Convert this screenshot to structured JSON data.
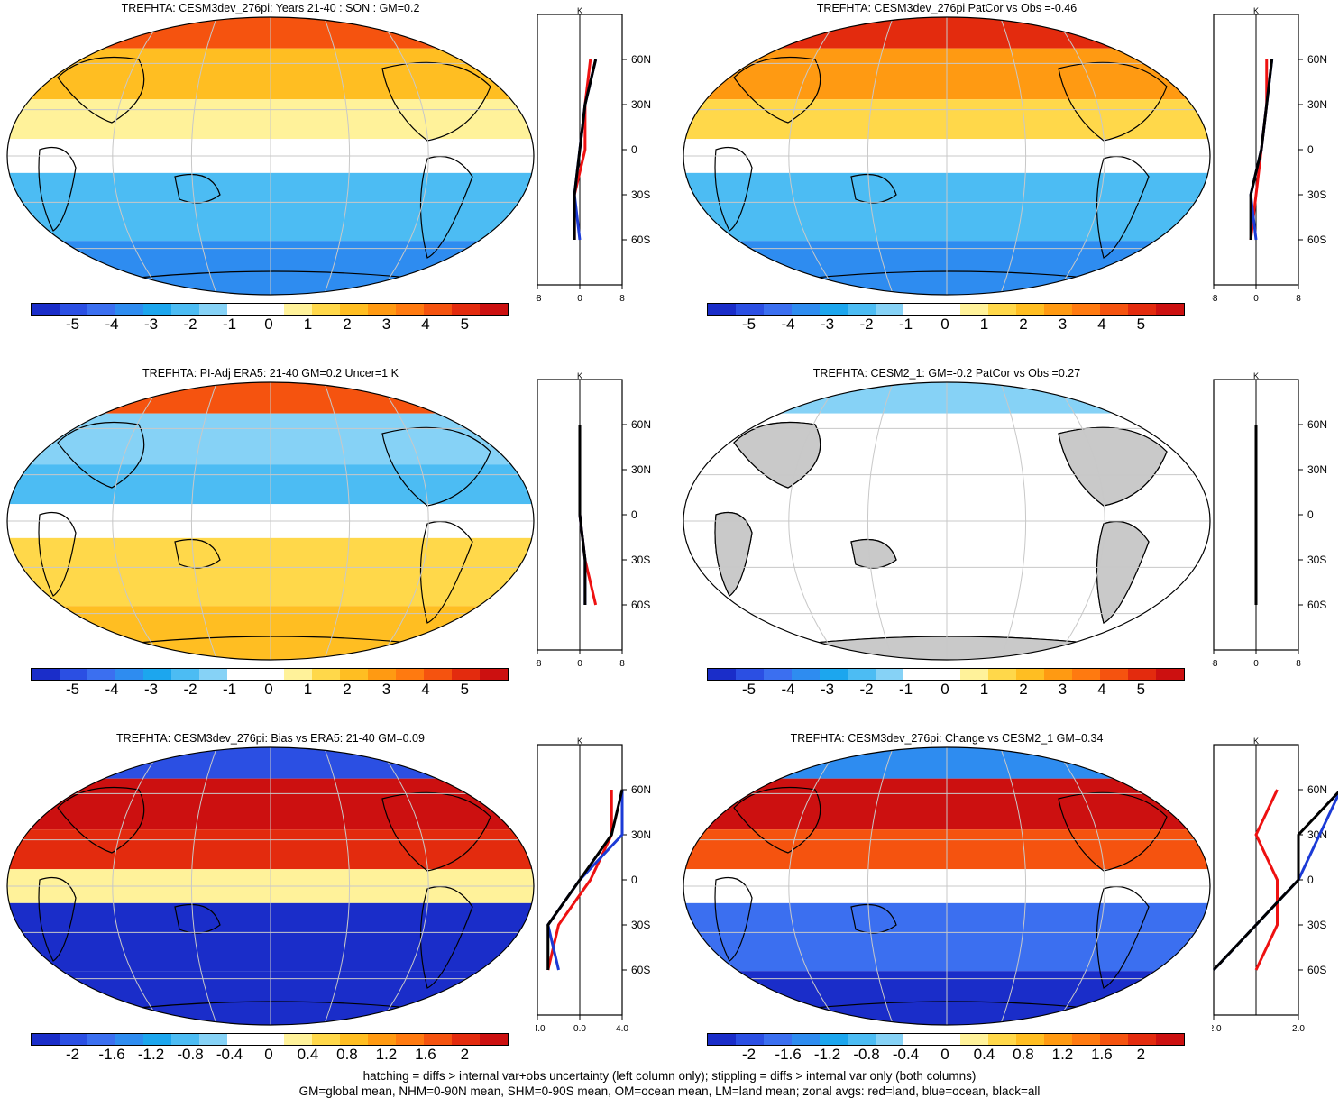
{
  "colors": {
    "palette": [
      "#1a2dc9",
      "#2b4fe3",
      "#3b6ff0",
      "#2e8cf0",
      "#1ca6ee",
      "#4cbcf3",
      "#86d2f6",
      "#ffffff",
      "#ffffff",
      "#fff29a",
      "#ffd84a",
      "#ffbe22",
      "#ff9a12",
      "#ff7a10",
      "#f5530f",
      "#e32b0e",
      "#cc1010"
    ],
    "land_mask": "#c9c9c9",
    "zonal_land": "#ee1111",
    "zonal_ocean": "#1b3ad6",
    "zonal_all": "#000000"
  },
  "panels": [
    {
      "title": "TREFHTA: CESM3dev_276pi: Years 21-40 : SON : GM=0.2",
      "colorbar_ticks": [
        "-5",
        "-4",
        "-3",
        "-2",
        "-1",
        "0",
        "1",
        "2",
        "3",
        "4",
        "5"
      ],
      "zonal_xticks": [
        "-8",
        "0",
        "8"
      ],
      "zonal_unit": "K"
    },
    {
      "title": "TREFHTA: CESM3dev_276pi PatCor vs Obs =-0.46",
      "colorbar_ticks": [
        "-5",
        "-4",
        "-3",
        "-2",
        "-1",
        "0",
        "1",
        "2",
        "3",
        "4",
        "5"
      ],
      "zonal_xticks": [
        "-8",
        "0",
        "8"
      ],
      "zonal_unit": "K"
    },
    {
      "title": "TREFHTA: PI-Adj ERA5: 21-40 GM=0.2 Uncer=1 K",
      "colorbar_ticks": [
        "-5",
        "-4",
        "-3",
        "-2",
        "-1",
        "0",
        "1",
        "2",
        "3",
        "4",
        "5"
      ],
      "zonal_xticks": [
        "-8",
        "0",
        "8"
      ],
      "zonal_unit": "K"
    },
    {
      "title": "TREFHTA: CESM2_1: GM=-0.2 PatCor vs Obs =0.27",
      "colorbar_ticks": [
        "-5",
        "-4",
        "-3",
        "-2",
        "-1",
        "0",
        "1",
        "2",
        "3",
        "4",
        "5"
      ],
      "zonal_xticks": [
        "-8",
        "0",
        "8"
      ],
      "zonal_unit": "K"
    },
    {
      "title": "TREFHTA: CESM3dev_276pi: Bias vs ERA5: 21-40  GM=0.09",
      "colorbar_ticks": [
        "-2",
        "-1.6",
        "-1.2",
        "-0.8",
        "-0.4",
        "0",
        "0.4",
        "0.8",
        "1.2",
        "1.6",
        "2"
      ],
      "zonal_xticks": [
        "-4.0",
        "0.0",
        "4.0"
      ],
      "zonal_unit": "K"
    },
    {
      "title": "TREFHTA: CESM3dev_276pi: Change vs CESM2_1 GM=0.34",
      "colorbar_ticks": [
        "-2",
        "-1.6",
        "-1.2",
        "-0.8",
        "-0.4",
        "0",
        "0.4",
        "0.8",
        "1.2",
        "1.6",
        "2"
      ],
      "zonal_xticks": [
        "-2.0",
        "2.0"
      ],
      "zonal_unit": "K"
    }
  ],
  "chart_data": [
    {
      "type": "heatmap",
      "title": "TREFHTA: CESM3dev_276pi: Years 21-40 : SON : GM=0.2",
      "units": "K",
      "colorbar_range": [
        -5,
        5
      ],
      "zonal_mean": {
        "lat": [
          "60N",
          "30N",
          "0",
          "30S",
          "60S"
        ],
        "xlim": [
          -8,
          8
        ],
        "series": [
          {
            "name": "red=land",
            "values": [
              2,
              1,
              1,
              -1,
              -1
            ]
          },
          {
            "name": "blue=ocean",
            "values": [
              3,
              1,
              0,
              -1,
              0
            ]
          },
          {
            "name": "black=all",
            "values": [
              3,
              1,
              0,
              -1,
              -1
            ]
          }
        ]
      }
    },
    {
      "type": "heatmap",
      "title": "TREFHTA: CESM3dev_276pi PatCor vs Obs =-0.46",
      "units": "K",
      "colorbar_range": [
        -5,
        5
      ],
      "zonal_mean": {
        "lat": [
          "60N",
          "30N",
          "0",
          "30S",
          "60S"
        ],
        "xlim": [
          -8,
          8
        ],
        "series": [
          {
            "name": "red=land",
            "values": [
              2,
              2,
              1,
              0,
              -1
            ]
          },
          {
            "name": "blue=ocean",
            "values": [
              3,
              2,
              1,
              -1,
              0
            ]
          },
          {
            "name": "black=all",
            "values": [
              3,
              2,
              1,
              -1,
              -1
            ]
          }
        ]
      }
    },
    {
      "type": "heatmap",
      "title": "TREFHTA: PI-Adj ERA5: 21-40 GM=0.2 Uncer=1 K",
      "units": "K",
      "colorbar_range": [
        -5,
        5
      ],
      "zonal_mean": {
        "lat": [
          "60N",
          "30N",
          "0",
          "30S",
          "60S"
        ],
        "xlim": [
          -8,
          8
        ],
        "series": [
          {
            "name": "red=land",
            "values": [
              0,
              0,
              0,
              1,
              3
            ]
          },
          {
            "name": "blue=ocean",
            "values": [
              0,
              0,
              0,
              1,
              1
            ]
          },
          {
            "name": "black=all",
            "values": [
              0,
              0,
              0,
              1,
              1
            ]
          }
        ]
      }
    },
    {
      "type": "heatmap",
      "title": "TREFHTA: CESM2_1: GM=-0.2 PatCor vs Obs =0.27",
      "units": "K",
      "colorbar_range": [
        -5,
        5
      ],
      "zonal_mean": {
        "lat": [
          "60N",
          "30N",
          "0",
          "30S",
          "60S"
        ],
        "xlim": [
          -8,
          8
        ],
        "series": [
          {
            "name": "red=land",
            "values": [
              0,
              0,
              0,
              0,
              0
            ]
          },
          {
            "name": "blue=ocean",
            "values": [
              0,
              0,
              0,
              0,
              0
            ]
          },
          {
            "name": "black=all",
            "values": [
              0,
              0,
              0,
              0,
              0
            ]
          }
        ]
      }
    },
    {
      "type": "heatmap",
      "title": "TREFHTA: CESM3dev_276pi: Bias vs ERA5: 21-40  GM=0.09",
      "units": "K",
      "colorbar_range": [
        -2,
        2
      ],
      "zonal_mean": {
        "lat": [
          "60N",
          "30N",
          "0",
          "30S",
          "60S"
        ],
        "xlim": [
          -4,
          4
        ],
        "series": [
          {
            "name": "red=land",
            "values": [
              3,
              3,
              1,
              -2,
              -3
            ]
          },
          {
            "name": "blue=ocean",
            "values": [
              4,
              4,
              0,
              -3,
              -2
            ]
          },
          {
            "name": "black=all",
            "values": [
              4,
              3,
              0,
              -3,
              -3
            ]
          }
        ]
      }
    },
    {
      "type": "heatmap",
      "title": "TREFHTA: CESM3dev_276pi: Change vs CESM2_1 GM=0.34",
      "units": "K",
      "colorbar_range": [
        -2,
        2
      ],
      "zonal_mean": {
        "lat": [
          "60N",
          "30N",
          "0",
          "30S",
          "60S"
        ],
        "xlim": [
          -2,
          2
        ],
        "series": [
          {
            "name": "red=land",
            "values": [
              1,
              0,
              1,
              1,
              0
            ]
          },
          {
            "name": "blue=ocean",
            "values": [
              4,
              3,
              2,
              0,
              -2
            ]
          },
          {
            "name": "black=all",
            "values": [
              4,
              2,
              2,
              0,
              -2
            ]
          }
        ]
      }
    }
  ],
  "footer": {
    "line1": "hatching = diffs > internal var+obs uncertainty (left column only); stippling = diffs > internal var only (both columns)",
    "line2": "GM=global mean, NHM=0-90N mean, SHM=0-90S mean, OM=ocean mean, LM=land mean; zonal avgs: red=land, blue=ocean, black=all"
  }
}
